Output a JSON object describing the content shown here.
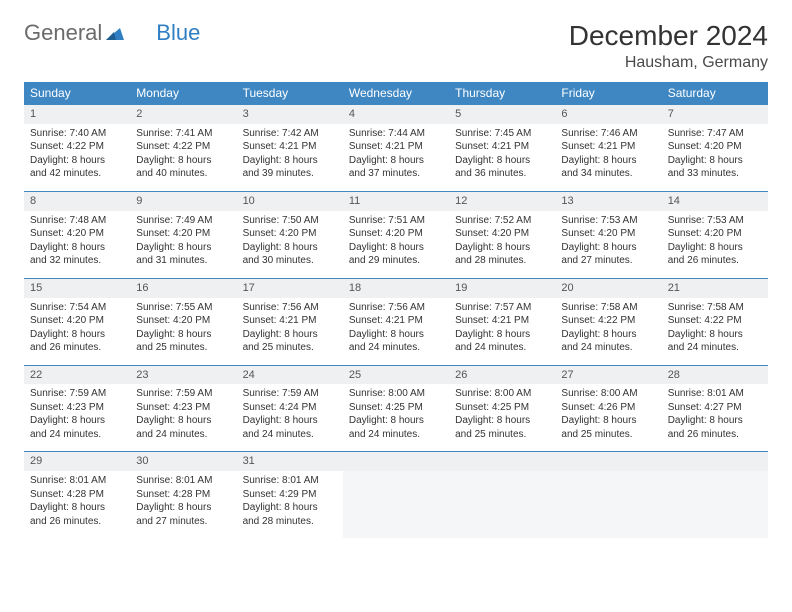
{
  "logo": {
    "text1": "General",
    "text2": "Blue"
  },
  "title": "December 2024",
  "location": "Hausham, Germany",
  "colors": {
    "header_bg": "#3e87c3",
    "header_text": "#ffffff",
    "daynum_bg": "#eef0f2",
    "border": "#3e87c3",
    "logo_gray": "#6b6b6b",
    "logo_blue": "#2f7fc2"
  },
  "weekdays": [
    "Sunday",
    "Monday",
    "Tuesday",
    "Wednesday",
    "Thursday",
    "Friday",
    "Saturday"
  ],
  "weeks": [
    {
      "nums": [
        "1",
        "2",
        "3",
        "4",
        "5",
        "6",
        "7"
      ],
      "cells": [
        {
          "sunrise": "Sunrise: 7:40 AM",
          "sunset": "Sunset: 4:22 PM",
          "day1": "Daylight: 8 hours",
          "day2": "and 42 minutes."
        },
        {
          "sunrise": "Sunrise: 7:41 AM",
          "sunset": "Sunset: 4:22 PM",
          "day1": "Daylight: 8 hours",
          "day2": "and 40 minutes."
        },
        {
          "sunrise": "Sunrise: 7:42 AM",
          "sunset": "Sunset: 4:21 PM",
          "day1": "Daylight: 8 hours",
          "day2": "and 39 minutes."
        },
        {
          "sunrise": "Sunrise: 7:44 AM",
          "sunset": "Sunset: 4:21 PM",
          "day1": "Daylight: 8 hours",
          "day2": "and 37 minutes."
        },
        {
          "sunrise": "Sunrise: 7:45 AM",
          "sunset": "Sunset: 4:21 PM",
          "day1": "Daylight: 8 hours",
          "day2": "and 36 minutes."
        },
        {
          "sunrise": "Sunrise: 7:46 AM",
          "sunset": "Sunset: 4:21 PM",
          "day1": "Daylight: 8 hours",
          "day2": "and 34 minutes."
        },
        {
          "sunrise": "Sunrise: 7:47 AM",
          "sunset": "Sunset: 4:20 PM",
          "day1": "Daylight: 8 hours",
          "day2": "and 33 minutes."
        }
      ]
    },
    {
      "nums": [
        "8",
        "9",
        "10",
        "11",
        "12",
        "13",
        "14"
      ],
      "cells": [
        {
          "sunrise": "Sunrise: 7:48 AM",
          "sunset": "Sunset: 4:20 PM",
          "day1": "Daylight: 8 hours",
          "day2": "and 32 minutes."
        },
        {
          "sunrise": "Sunrise: 7:49 AM",
          "sunset": "Sunset: 4:20 PM",
          "day1": "Daylight: 8 hours",
          "day2": "and 31 minutes."
        },
        {
          "sunrise": "Sunrise: 7:50 AM",
          "sunset": "Sunset: 4:20 PM",
          "day1": "Daylight: 8 hours",
          "day2": "and 30 minutes."
        },
        {
          "sunrise": "Sunrise: 7:51 AM",
          "sunset": "Sunset: 4:20 PM",
          "day1": "Daylight: 8 hours",
          "day2": "and 29 minutes."
        },
        {
          "sunrise": "Sunrise: 7:52 AM",
          "sunset": "Sunset: 4:20 PM",
          "day1": "Daylight: 8 hours",
          "day2": "and 28 minutes."
        },
        {
          "sunrise": "Sunrise: 7:53 AM",
          "sunset": "Sunset: 4:20 PM",
          "day1": "Daylight: 8 hours",
          "day2": "and 27 minutes."
        },
        {
          "sunrise": "Sunrise: 7:53 AM",
          "sunset": "Sunset: 4:20 PM",
          "day1": "Daylight: 8 hours",
          "day2": "and 26 minutes."
        }
      ]
    },
    {
      "nums": [
        "15",
        "16",
        "17",
        "18",
        "19",
        "20",
        "21"
      ],
      "cells": [
        {
          "sunrise": "Sunrise: 7:54 AM",
          "sunset": "Sunset: 4:20 PM",
          "day1": "Daylight: 8 hours",
          "day2": "and 26 minutes."
        },
        {
          "sunrise": "Sunrise: 7:55 AM",
          "sunset": "Sunset: 4:20 PM",
          "day1": "Daylight: 8 hours",
          "day2": "and 25 minutes."
        },
        {
          "sunrise": "Sunrise: 7:56 AM",
          "sunset": "Sunset: 4:21 PM",
          "day1": "Daylight: 8 hours",
          "day2": "and 25 minutes."
        },
        {
          "sunrise": "Sunrise: 7:56 AM",
          "sunset": "Sunset: 4:21 PM",
          "day1": "Daylight: 8 hours",
          "day2": "and 24 minutes."
        },
        {
          "sunrise": "Sunrise: 7:57 AM",
          "sunset": "Sunset: 4:21 PM",
          "day1": "Daylight: 8 hours",
          "day2": "and 24 minutes."
        },
        {
          "sunrise": "Sunrise: 7:58 AM",
          "sunset": "Sunset: 4:22 PM",
          "day1": "Daylight: 8 hours",
          "day2": "and 24 minutes."
        },
        {
          "sunrise": "Sunrise: 7:58 AM",
          "sunset": "Sunset: 4:22 PM",
          "day1": "Daylight: 8 hours",
          "day2": "and 24 minutes."
        }
      ]
    },
    {
      "nums": [
        "22",
        "23",
        "24",
        "25",
        "26",
        "27",
        "28"
      ],
      "cells": [
        {
          "sunrise": "Sunrise: 7:59 AM",
          "sunset": "Sunset: 4:23 PM",
          "day1": "Daylight: 8 hours",
          "day2": "and 24 minutes."
        },
        {
          "sunrise": "Sunrise: 7:59 AM",
          "sunset": "Sunset: 4:23 PM",
          "day1": "Daylight: 8 hours",
          "day2": "and 24 minutes."
        },
        {
          "sunrise": "Sunrise: 7:59 AM",
          "sunset": "Sunset: 4:24 PM",
          "day1": "Daylight: 8 hours",
          "day2": "and 24 minutes."
        },
        {
          "sunrise": "Sunrise: 8:00 AM",
          "sunset": "Sunset: 4:25 PM",
          "day1": "Daylight: 8 hours",
          "day2": "and 24 minutes."
        },
        {
          "sunrise": "Sunrise: 8:00 AM",
          "sunset": "Sunset: 4:25 PM",
          "day1": "Daylight: 8 hours",
          "day2": "and 25 minutes."
        },
        {
          "sunrise": "Sunrise: 8:00 AM",
          "sunset": "Sunset: 4:26 PM",
          "day1": "Daylight: 8 hours",
          "day2": "and 25 minutes."
        },
        {
          "sunrise": "Sunrise: 8:01 AM",
          "sunset": "Sunset: 4:27 PM",
          "day1": "Daylight: 8 hours",
          "day2": "and 26 minutes."
        }
      ]
    },
    {
      "nums": [
        "29",
        "30",
        "31",
        "",
        "",
        "",
        ""
      ],
      "cells": [
        {
          "sunrise": "Sunrise: 8:01 AM",
          "sunset": "Sunset: 4:28 PM",
          "day1": "Daylight: 8 hours",
          "day2": "and 26 minutes."
        },
        {
          "sunrise": "Sunrise: 8:01 AM",
          "sunset": "Sunset: 4:28 PM",
          "day1": "Daylight: 8 hours",
          "day2": "and 27 minutes."
        },
        {
          "sunrise": "Sunrise: 8:01 AM",
          "sunset": "Sunset: 4:29 PM",
          "day1": "Daylight: 8 hours",
          "day2": "and 28 minutes."
        },
        null,
        null,
        null,
        null
      ]
    }
  ]
}
